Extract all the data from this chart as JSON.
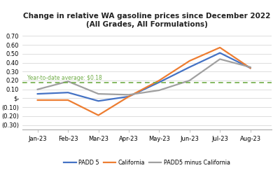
{
  "title": "Change in relative WA gasoline prices since December 2022\n(All Grades, All Formulations)",
  "months": [
    "Jan-23",
    "Feb-23",
    "Mar-23",
    "Apr-23",
    "May-23",
    "Jun-23",
    "Jul-23",
    "Aug-23"
  ],
  "padd5": [
    0.05,
    0.065,
    -0.03,
    0.02,
    0.18,
    0.35,
    0.51,
    0.34
  ],
  "california": [
    -0.02,
    -0.02,
    -0.19,
    0.02,
    0.2,
    0.42,
    0.57,
    0.34
  ],
  "padd5_minus": [
    0.1,
    0.19,
    0.05,
    0.04,
    0.09,
    0.2,
    0.44,
    0.35
  ],
  "padd5_color": "#4472c4",
  "california_color": "#ed7d31",
  "padd5_minus_color": "#a0a0a0",
  "avg_line": 0.18,
  "avg_label": "Year-to-date average: $0.18",
  "avg_color": "#70ad47",
  "ylim": [
    -0.35,
    0.75
  ],
  "yticks": [
    -0.3,
    -0.2,
    -0.1,
    0.0,
    0.1,
    0.2,
    0.3,
    0.4,
    0.5,
    0.6,
    0.7
  ],
  "ytick_labels": [
    "(0.30)",
    "(0.20)",
    "(0.10)",
    "$-",
    "0.10",
    "0.20",
    "0.30",
    "0.40",
    "0.50",
    "0.60",
    "0.70"
  ],
  "background_color": "#ffffff",
  "grid_color": "#d0d0d0"
}
